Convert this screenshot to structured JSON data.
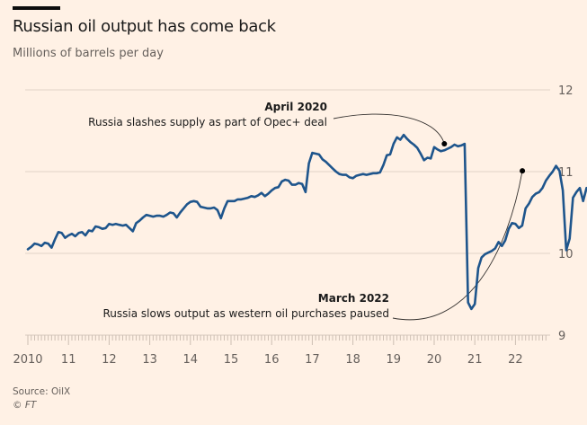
{
  "header": {
    "title": "Russian oil output has come back",
    "subtitle": "Millions of barrels per day"
  },
  "footer": {
    "source": "Source: OilX",
    "copyright": "© FT"
  },
  "chart_data": {
    "type": "line",
    "title": "Russian oil output has come back",
    "subtitle": "Millions of barrels per day",
    "xlabel": "",
    "ylabel": "Millions of barrels per day",
    "ylim": [
      9,
      12
    ],
    "xlim": [
      2010.0,
      2022.83
    ],
    "grid": true,
    "y_ticks": [
      {
        "value": 12,
        "label": "12"
      },
      {
        "value": 11,
        "label": "11"
      },
      {
        "value": 10,
        "label": "10"
      },
      {
        "value": 9,
        "label": "9"
      }
    ],
    "x_ticks": [
      {
        "value": 2010,
        "label": "2010"
      },
      {
        "value": 2011,
        "label": "11"
      },
      {
        "value": 2012,
        "label": "12"
      },
      {
        "value": 2013,
        "label": "13"
      },
      {
        "value": 2014,
        "label": "14"
      },
      {
        "value": 2015,
        "label": "15"
      },
      {
        "value": 2016,
        "label": "16"
      },
      {
        "value": 2017,
        "label": "17"
      },
      {
        "value": 2018,
        "label": "18"
      },
      {
        "value": 2019,
        "label": "19"
      },
      {
        "value": 2020,
        "label": "20"
      },
      {
        "value": 2021,
        "label": "21"
      },
      {
        "value": 2022,
        "label": "22"
      }
    ],
    "series": [
      {
        "name": "Russian oil output",
        "color": "#1e558c",
        "start": 2010.0,
        "step_months": 1,
        "values": [
          10.05,
          10.08,
          10.12,
          10.11,
          10.09,
          10.13,
          10.12,
          10.07,
          10.17,
          10.26,
          10.25,
          10.19,
          10.22,
          10.24,
          10.21,
          10.25,
          10.26,
          10.22,
          10.28,
          10.27,
          10.33,
          10.32,
          10.3,
          10.31,
          10.36,
          10.35,
          10.36,
          10.35,
          10.34,
          10.35,
          10.31,
          10.27,
          10.37,
          10.4,
          10.44,
          10.47,
          10.46,
          10.45,
          10.46,
          10.46,
          10.45,
          10.47,
          10.5,
          10.49,
          10.44,
          10.5,
          10.55,
          10.6,
          10.63,
          10.64,
          10.63,
          10.57,
          10.56,
          10.55,
          10.55,
          10.56,
          10.53,
          10.43,
          10.55,
          10.64,
          10.64,
          10.64,
          10.66,
          10.66,
          10.67,
          10.68,
          10.7,
          10.69,
          10.71,
          10.74,
          10.7,
          10.73,
          10.77,
          10.8,
          10.81,
          10.88,
          10.9,
          10.89,
          10.84,
          10.84,
          10.86,
          10.85,
          10.75,
          11.1,
          11.23,
          11.22,
          11.21,
          11.15,
          11.12,
          11.08,
          11.04,
          11.0,
          10.97,
          10.96,
          10.96,
          10.93,
          10.92,
          10.95,
          10.96,
          10.97,
          10.96,
          10.97,
          10.98,
          10.98,
          10.99,
          11.08,
          11.2,
          11.21,
          11.34,
          11.42,
          11.39,
          11.45,
          11.4,
          11.36,
          11.33,
          11.29,
          11.22,
          11.14,
          11.17,
          11.16,
          11.3,
          11.27,
          11.25,
          11.26,
          11.28,
          11.3,
          11.33,
          11.31,
          11.32,
          11.34,
          9.4,
          9.32,
          9.38,
          9.82,
          9.95,
          9.99,
          10.01,
          10.03,
          10.06,
          10.14,
          10.09,
          10.16,
          10.3,
          10.37,
          10.36,
          10.31,
          10.34,
          10.55,
          10.61,
          10.69,
          10.73,
          10.75,
          10.8,
          10.89,
          10.95,
          11.0,
          11.07,
          11.01,
          10.77,
          10.04,
          10.18,
          10.68,
          10.75,
          10.8,
          10.64,
          10.8,
          10.76,
          10.8,
          10.85
        ]
      }
    ],
    "annotations": [
      {
        "date": 2020.25,
        "value": 11.34,
        "title": "April 2020",
        "text": "Russia slashes supply as part of Opec+ deal"
      },
      {
        "date": 2022.17,
        "value": 11.01,
        "title": "March 2022",
        "text": "Russia slows output as western oil purchases paused"
      }
    ]
  }
}
